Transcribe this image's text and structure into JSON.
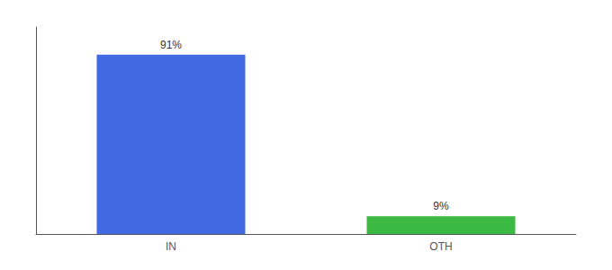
{
  "chart_data": {
    "type": "bar",
    "categories": [
      "IN",
      "OTH"
    ],
    "values": [
      91,
      9
    ],
    "value_labels": [
      "91%",
      "9%"
    ],
    "colors": [
      "#4169e1",
      "#3cb943"
    ],
    "ylim": [
      0,
      105
    ],
    "yticks": [],
    "tick_labels": "x",
    "grid": false,
    "data_labels": true
  }
}
